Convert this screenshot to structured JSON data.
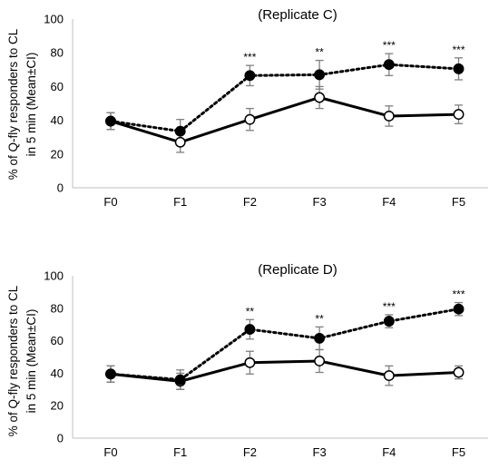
{
  "chart_data": [
    {
      "type": "line",
      "title": "(Replicate C)",
      "ylabel_lines": [
        "% of Q-fly responders to CL",
        "in 5 min (Mean±CI)"
      ],
      "categories": [
        "F0",
        "F1",
        "F2",
        "F3",
        "F4",
        "F5"
      ],
      "ylim": [
        0,
        100
      ],
      "yticks": [
        "0",
        "20",
        "40",
        "60",
        "80",
        "100"
      ],
      "grid": false,
      "series": [
        {
          "style": "solid-open",
          "values": [
            39.5,
            27,
            40.5,
            53.5,
            42.5,
            43.5
          ],
          "err": [
            5,
            6,
            6.5,
            6.5,
            6,
            5.5
          ]
        },
        {
          "style": "dotted-filled",
          "values": [
            39.5,
            33.5,
            66.5,
            67,
            73,
            70.5
          ],
          "err": [
            5,
            7,
            6,
            8.5,
            6.5,
            6.5
          ]
        }
      ],
      "significance": [
        "",
        "",
        "***",
        "**",
        "***",
        "***"
      ]
    },
    {
      "type": "line",
      "title": "(Replicate D)",
      "ylabel_lines": [
        "% of Q-fly responders to CL",
        "in 5 min (Mean±CI)"
      ],
      "categories": [
        "F0",
        "F1",
        "F2",
        "F3",
        "F4",
        "F5"
      ],
      "ylim": [
        0,
        100
      ],
      "yticks": [
        "0",
        "20",
        "40",
        "60",
        "80",
        "100"
      ],
      "grid": false,
      "series": [
        {
          "style": "solid-open",
          "values": [
            39.5,
            35,
            46.5,
            47.5,
            38.5,
            40.5
          ],
          "err": [
            5,
            5,
            7,
            7,
            6,
            4
          ]
        },
        {
          "style": "dotted-filled",
          "values": [
            39.5,
            36,
            67,
            61.5,
            72,
            79.5
          ],
          "err": [
            5,
            6,
            6,
            7,
            4,
            4
          ]
        }
      ],
      "significance": [
        "",
        "",
        "**",
        "**",
        "***",
        "***"
      ]
    }
  ]
}
